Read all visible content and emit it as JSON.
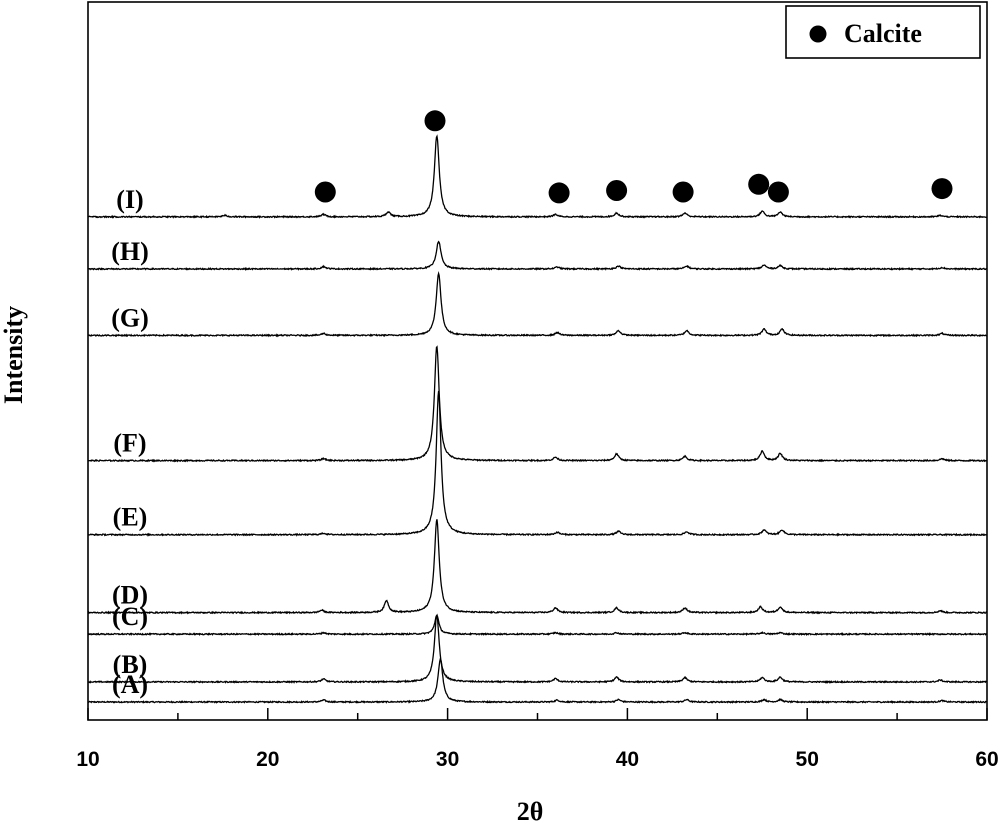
{
  "chart_data": {
    "type": "line",
    "title": "",
    "xlabel": "2θ",
    "ylabel": "Intensity",
    "xlim": [
      10,
      60
    ],
    "x_ticks": [
      10,
      20,
      30,
      40,
      50,
      60
    ],
    "y_ticks_shown": false,
    "grid": false,
    "legend": {
      "placement": "top-right",
      "entries": [
        {
          "label": "Calcite",
          "marker": "filled-circle",
          "color": "#000000"
        }
      ]
    },
    "series": [
      {
        "name": "(A)",
        "baseline": 0.0,
        "peaks": [
          {
            "x": 23.1,
            "height": 0.004
          },
          {
            "x": 29.6,
            "height": 0.09
          },
          {
            "x": 36.1,
            "height": 0.004
          },
          {
            "x": 39.5,
            "height": 0.005
          },
          {
            "x": 43.3,
            "height": 0.005
          },
          {
            "x": 47.6,
            "height": 0.005
          },
          {
            "x": 48.5,
            "height": 0.005
          },
          {
            "x": 57.5,
            "height": 0.003
          }
        ]
      },
      {
        "name": "(B)",
        "baseline": 0.042,
        "peaks": [
          {
            "x": 23.1,
            "height": 0.006
          },
          {
            "x": 29.4,
            "height": 0.14
          },
          {
            "x": 36.0,
            "height": 0.007
          },
          {
            "x": 39.4,
            "height": 0.01
          },
          {
            "x": 43.2,
            "height": 0.009
          },
          {
            "x": 47.5,
            "height": 0.009
          },
          {
            "x": 48.5,
            "height": 0.01
          },
          {
            "x": 57.4,
            "height": 0.004
          }
        ]
      },
      {
        "name": "(C)",
        "baseline": 0.142,
        "peaks": [
          {
            "x": 23.1,
            "height": 0.003
          },
          {
            "x": 29.4,
            "height": 0.04
          },
          {
            "x": 36.0,
            "height": 0.003
          },
          {
            "x": 39.4,
            "height": 0.003
          },
          {
            "x": 43.2,
            "height": 0.003
          },
          {
            "x": 47.5,
            "height": 0.003
          },
          {
            "x": 48.5,
            "height": 0.003
          }
        ]
      },
      {
        "name": "(D)",
        "baseline": 0.187,
        "peaks": [
          {
            "x": 23.0,
            "height": 0.005
          },
          {
            "x": 26.6,
            "height": 0.025
          },
          {
            "x": 29.4,
            "height": 0.195
          },
          {
            "x": 36.0,
            "height": 0.01
          },
          {
            "x": 39.4,
            "height": 0.01
          },
          {
            "x": 43.2,
            "height": 0.01
          },
          {
            "x": 47.4,
            "height": 0.012
          },
          {
            "x": 48.5,
            "height": 0.012
          },
          {
            "x": 57.4,
            "height": 0.004
          }
        ]
      },
      {
        "name": "(E)",
        "baseline": 0.35,
        "peaks": [
          {
            "x": 23.1,
            "height": 0.003
          },
          {
            "x": 29.5,
            "height": 0.3
          },
          {
            "x": 36.1,
            "height": 0.005
          },
          {
            "x": 39.5,
            "height": 0.007
          },
          {
            "x": 43.3,
            "height": 0.006
          },
          {
            "x": 47.6,
            "height": 0.01
          },
          {
            "x": 48.6,
            "height": 0.01
          }
        ]
      },
      {
        "name": "(F)",
        "baseline": 0.505,
        "peaks": [
          {
            "x": 23.1,
            "height": 0.004
          },
          {
            "x": 29.4,
            "height": 0.24
          },
          {
            "x": 36.0,
            "height": 0.007
          },
          {
            "x": 39.4,
            "height": 0.014
          },
          {
            "x": 43.2,
            "height": 0.009
          },
          {
            "x": 47.5,
            "height": 0.02
          },
          {
            "x": 48.5,
            "height": 0.015
          },
          {
            "x": 57.5,
            "height": 0.004
          }
        ]
      },
      {
        "name": "(G)",
        "baseline": 0.767,
        "peaks": [
          {
            "x": 23.1,
            "height": 0.004
          },
          {
            "x": 29.5,
            "height": 0.13
          },
          {
            "x": 36.1,
            "height": 0.006
          },
          {
            "x": 39.5,
            "height": 0.01
          },
          {
            "x": 43.3,
            "height": 0.01
          },
          {
            "x": 47.6,
            "height": 0.013
          },
          {
            "x": 48.6,
            "height": 0.013
          },
          {
            "x": 57.5,
            "height": 0.004
          }
        ]
      },
      {
        "name": "(H)",
        "baseline": 0.906,
        "peaks": [
          {
            "x": 23.1,
            "height": 0.005
          },
          {
            "x": 29.5,
            "height": 0.058
          },
          {
            "x": 36.1,
            "height": 0.004
          },
          {
            "x": 39.5,
            "height": 0.006
          },
          {
            "x": 43.3,
            "height": 0.006
          },
          {
            "x": 47.6,
            "height": 0.008
          },
          {
            "x": 48.5,
            "height": 0.007
          },
          {
            "x": 57.5,
            "height": 0.003
          }
        ]
      },
      {
        "name": "(I)",
        "baseline": 1.015,
        "peaks": [
          {
            "x": 17.6,
            "height": 0.003
          },
          {
            "x": 23.1,
            "height": 0.005
          },
          {
            "x": 26.7,
            "height": 0.01
          },
          {
            "x": 29.4,
            "height": 0.17
          },
          {
            "x": 36.0,
            "height": 0.005
          },
          {
            "x": 39.4,
            "height": 0.008
          },
          {
            "x": 43.2,
            "height": 0.008
          },
          {
            "x": 47.5,
            "height": 0.012
          },
          {
            "x": 48.5,
            "height": 0.01
          },
          {
            "x": 57.4,
            "height": 0.003
          }
        ]
      }
    ],
    "calcite_markers": [
      {
        "x": 23.2,
        "y": 1.067
      },
      {
        "x": 29.3,
        "y": 1.216
      },
      {
        "x": 36.2,
        "y": 1.065
      },
      {
        "x": 39.4,
        "y": 1.07
      },
      {
        "x": 43.1,
        "y": 1.067
      },
      {
        "x": 47.3,
        "y": 1.083
      },
      {
        "x": 48.4,
        "y": 1.067
      },
      {
        "x": 57.5,
        "y": 1.074
      }
    ]
  }
}
